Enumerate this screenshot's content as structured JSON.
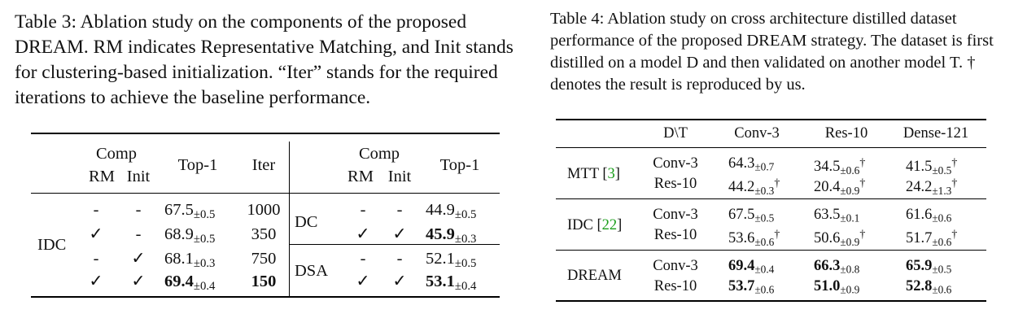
{
  "table3": {
    "caption": "Table 3: Ablation study on the components of the proposed DREAM. RM indicates Representative Matching, and Init stands for clustering-based initialization. “Iter” stands for the required iterations to achieve the baseline performance.",
    "header": {
      "comp": "Comp",
      "rm": "RM",
      "init": "Init",
      "top1": "Top-1",
      "iter": "Iter"
    },
    "left_group": "IDC",
    "left_rows": [
      {
        "rm": "-",
        "init": "-",
        "top1": "67.5",
        "pm": "±0.5",
        "iter": "1000",
        "bold": false
      },
      {
        "rm": "✓",
        "init": "-",
        "top1": "68.9",
        "pm": "±0.5",
        "iter": "350",
        "bold": false
      },
      {
        "rm": "-",
        "init": "✓",
        "top1": "68.1",
        "pm": "±0.3",
        "iter": "750",
        "bold": false
      },
      {
        "rm": "✓",
        "init": "✓",
        "top1": "69.4",
        "pm": "±0.4",
        "iter": "150",
        "bold": true
      }
    ],
    "right_groups": [
      {
        "name": "DC",
        "rows": [
          {
            "rm": "-",
            "init": "-",
            "top1": "44.9",
            "pm": "±0.5",
            "bold": false
          },
          {
            "rm": "✓",
            "init": "✓",
            "top1": "45.9",
            "pm": "±0.3",
            "bold": true
          }
        ]
      },
      {
        "name": "DSA",
        "rows": [
          {
            "rm": "-",
            "init": "-",
            "top1": "52.1",
            "pm": "±0.5",
            "bold": false
          },
          {
            "rm": "✓",
            "init": "✓",
            "top1": "53.1",
            "pm": "±0.4",
            "bold": true
          }
        ]
      }
    ]
  },
  "table4": {
    "caption": "Table 4: Ablation study on cross architecture distilled dataset performance of the proposed DREAM strategy. The dataset is first distilled on a model D and then validated on another model T. † denotes the result is reproduced by us.",
    "columns": [
      "D\\T",
      "Conv-3",
      "Res-10",
      "Dense-121"
    ],
    "groups": [
      {
        "method": "MTT",
        "cite": "3",
        "rows": [
          {
            "d": "Conv-3",
            "vals": [
              [
                "64.3",
                "±0.7",
                false
              ],
              [
                "34.5",
                "±0.6",
                true
              ],
              [
                "41.5",
                "±0.5",
                true
              ]
            ]
          },
          {
            "d": "Res-10",
            "vals": [
              [
                "44.2",
                "±0.3",
                true
              ],
              [
                "20.4",
                "±0.9",
                true
              ],
              [
                "24.2",
                "±1.3",
                true
              ]
            ]
          }
        ]
      },
      {
        "method": "IDC",
        "cite": "22",
        "rows": [
          {
            "d": "Conv-3",
            "vals": [
              [
                "67.5",
                "±0.5",
                false
              ],
              [
                "63.5",
                "±0.1",
                false
              ],
              [
                "61.6",
                "±0.6",
                false
              ]
            ]
          },
          {
            "d": "Res-10",
            "vals": [
              [
                "53.6",
                "±0.6",
                true
              ],
              [
                "50.6",
                "±0.9",
                true
              ],
              [
                "51.7",
                "±0.6",
                true
              ]
            ]
          }
        ]
      },
      {
        "method": "DREAM",
        "cite": "",
        "bold": true,
        "rows": [
          {
            "d": "Conv-3",
            "vals": [
              [
                "69.4",
                "±0.4",
                false
              ],
              [
                "66.3",
                "±0.8",
                false
              ],
              [
                "65.9",
                "±0.5",
                false
              ]
            ]
          },
          {
            "d": "Res-10",
            "vals": [
              [
                "53.7",
                "±0.6",
                false
              ],
              [
                "51.0",
                "±0.9",
                false
              ],
              [
                "52.8",
                "±0.6",
                false
              ]
            ]
          }
        ]
      }
    ],
    "dagger": "†"
  }
}
